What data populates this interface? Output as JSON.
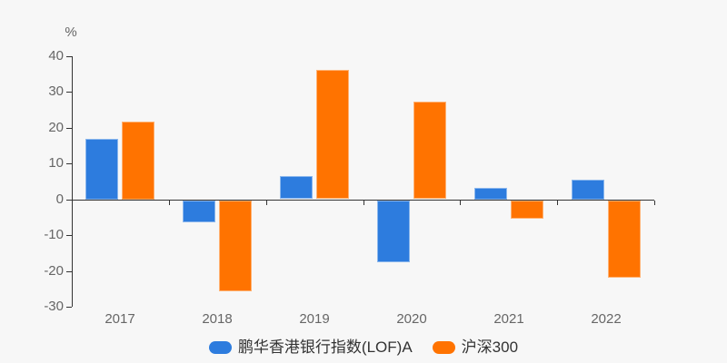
{
  "chart_data": {
    "type": "bar",
    "title": "",
    "xlabel": "",
    "ylabel": "%",
    "categories": [
      "2017",
      "2018",
      "2019",
      "2020",
      "2021",
      "2022"
    ],
    "series": [
      {
        "name": "鹏华香港银行指数(LOF)A",
        "color": "#2d7cde",
        "values": [
          17.0,
          -6.1,
          6.4,
          -17.2,
          3.2,
          5.6
        ]
      },
      {
        "name": "沪深300",
        "color": "#ff7300",
        "values": [
          21.8,
          -25.3,
          36.1,
          27.2,
          -5.1,
          -21.6
        ]
      }
    ],
    "ylim": [
      -30,
      40
    ],
    "yticks": [
      40,
      30,
      20,
      10,
      0,
      -10,
      -20,
      -30
    ],
    "grid": false,
    "legend_position": "bottom",
    "colors": {
      "background": "#f7f7f7",
      "axis": "#333333",
      "tick_label": "#666666",
      "legend_text": "#333333"
    }
  }
}
